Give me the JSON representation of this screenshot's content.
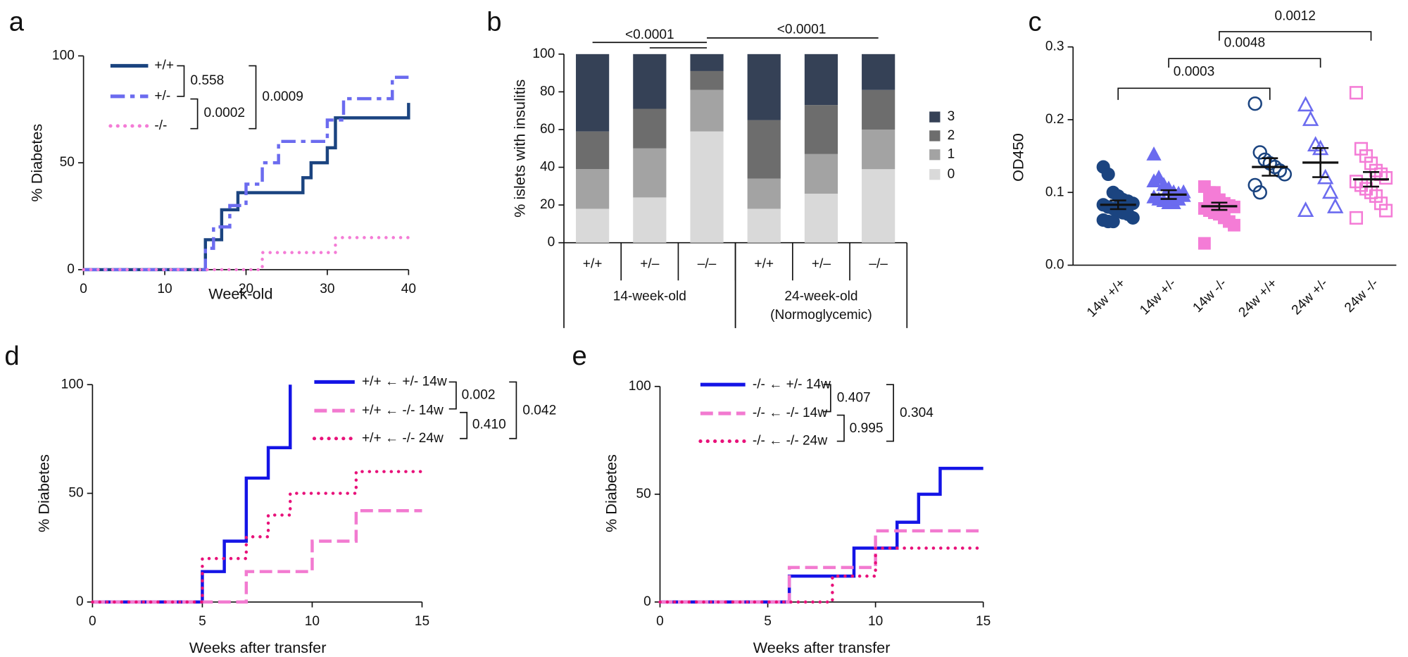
{
  "chart_data": [
    {
      "type": "step",
      "panel": "a",
      "xlabel": "Week-old",
      "ylabel": "% Diabetes",
      "xlim": [
        0,
        40
      ],
      "xticks": [
        0,
        10,
        20,
        30,
        40
      ],
      "ylim": [
        0,
        100
      ],
      "yticks": [
        0,
        50,
        100
      ],
      "series": [
        {
          "name": "+/+",
          "color": "#1b4480",
          "dash": "solid",
          "x": [
            0,
            15,
            17,
            19,
            27,
            28,
            30,
            31,
            40
          ],
          "values": [
            0,
            14,
            28,
            36,
            43,
            50,
            57,
            71,
            78
          ]
        },
        {
          "name": "+/-",
          "color": "#6b6bef",
          "dash": "dashdot",
          "x": [
            0,
            15,
            16,
            18,
            20,
            22,
            24,
            30,
            32,
            38,
            40
          ],
          "values": [
            0,
            10,
            20,
            30,
            40,
            50,
            60,
            70,
            80,
            90,
            90
          ]
        },
        {
          "name": "-/-",
          "color": "#f47cd6",
          "dash": "dotted",
          "x": [
            0,
            22,
            31,
            40
          ],
          "values": [
            0,
            8,
            15,
            15
          ]
        }
      ],
      "annotations": [
        "0.558",
        "0.0002",
        "0.0009"
      ]
    },
    {
      "type": "stacked_bar",
      "panel": "b",
      "ylabel": "% islets with insulitis",
      "ylim": [
        0,
        100
      ],
      "yticks": [
        0,
        20,
        40,
        60,
        80,
        100
      ],
      "groups": [
        {
          "label": [
            "14-week-old"
          ],
          "categories": [
            "+/+",
            "+/–",
            "–/–"
          ]
        },
        {
          "label": [
            "24-week-old",
            "(Normoglycemic)"
          ],
          "categories": [
            "+/+",
            "+/–",
            "–/–"
          ]
        }
      ],
      "series": [
        {
          "name": "0",
          "color": "#d9d9d9",
          "values": [
            18,
            24,
            59,
            18,
            26,
            39
          ]
        },
        {
          "name": "1",
          "color": "#a3a3a3",
          "values": [
            21,
            26,
            22,
            16,
            21,
            21
          ]
        },
        {
          "name": "2",
          "color": "#6d6d6d",
          "values": [
            20,
            21,
            10,
            31,
            26,
            21
          ]
        },
        {
          "name": "3",
          "color": "#354156",
          "values": [
            41,
            29,
            9,
            35,
            27,
            19
          ]
        }
      ],
      "annotations": [
        "<0.0001",
        "<0.0001"
      ]
    },
    {
      "type": "dot",
      "panel": "c",
      "ylabel": "OD450",
      "ylim": [
        0,
        0.3
      ],
      "yticks": [
        {
          "value": 0,
          "label": "0.0"
        },
        0.1,
        0.2,
        0.3
      ],
      "categories": [
        "14w +/+",
        "14w +/-",
        "14w -/-",
        "24w +/+",
        "24w +/-",
        "24w -/-"
      ],
      "colors": [
        "#1b4480",
        "#6b6bef",
        "#f47cd6",
        "#1b4480",
        "#6b6bef",
        "#f47cd6"
      ],
      "markers": [
        "circle",
        "triangle",
        "square",
        "circle",
        "triangle",
        "square"
      ],
      "filled": [
        true,
        true,
        true,
        false,
        false,
        false
      ],
      "values": [
        [
          0.135,
          0.125,
          0.1,
          0.095,
          0.09,
          0.088,
          0.085,
          0.083,
          0.08,
          0.078,
          0.075,
          0.072,
          0.07,
          0.065,
          0.062,
          0.06,
          0.06,
          0.095
        ],
        [
          0.152,
          0.12,
          0.11,
          0.105,
          0.1,
          0.098,
          0.095,
          0.093,
          0.09,
          0.088,
          0.085,
          0.085,
          0.09,
          0.1,
          0.115
        ],
        [
          0.108,
          0.1,
          0.095,
          0.09,
          0.085,
          0.082,
          0.08,
          0.078,
          0.075,
          0.072,
          0.07,
          0.065,
          0.06,
          0.055,
          0.03,
          0.09,
          0.1
        ],
        [
          0.222,
          0.155,
          0.145,
          0.14,
          0.135,
          0.13,
          0.125,
          0.11,
          0.1
        ],
        [
          0.22,
          0.2,
          0.165,
          0.16,
          0.12,
          0.1,
          0.08,
          0.075
        ],
        [
          0.237,
          0.16,
          0.15,
          0.14,
          0.13,
          0.125,
          0.12,
          0.115,
          0.11,
          0.105,
          0.1,
          0.095,
          0.085,
          0.075,
          0.065
        ]
      ],
      "means": [
        0.083,
        0.097,
        0.081,
        0.135,
        0.141,
        0.118
      ],
      "sems": [
        0.006,
        0.006,
        0.005,
        0.012,
        0.02,
        0.01
      ],
      "annotations": [
        "0.0003",
        "0.0048",
        "0.0012"
      ]
    },
    {
      "type": "step",
      "panel": "d",
      "xlabel": "Weeks after transfer",
      "ylabel": "% Diabetes",
      "xlim": [
        0,
        15
      ],
      "xticks": [
        0,
        5,
        10,
        15
      ],
      "ylim": [
        0,
        100
      ],
      "yticks": [
        0,
        50,
        100
      ],
      "series": [
        {
          "name": "+/+ ← +/- 14w",
          "color": "#1414e6",
          "dash": "solid",
          "x": [
            0,
            5,
            6,
            7,
            8,
            9
          ],
          "values": [
            0,
            14,
            28,
            57,
            71,
            100
          ]
        },
        {
          "name": "+/+ ← -/- 14w",
          "color": "#f27ad0",
          "dash": "dashed",
          "x": [
            0,
            7,
            10,
            12,
            15
          ],
          "values": [
            0,
            14,
            28,
            42,
            42
          ]
        },
        {
          "name": "+/+ ← -/- 24w",
          "color": "#e8127a",
          "dash": "dotted",
          "x": [
            0,
            5,
            7,
            8,
            9,
            12,
            15
          ],
          "values": [
            0,
            20,
            30,
            40,
            50,
            60,
            60
          ]
        }
      ],
      "annotations": [
        "0.002",
        "0.410",
        "0.042"
      ]
    },
    {
      "type": "step",
      "panel": "e",
      "xlabel": "Weeks after transfer",
      "ylabel": "% Diabetes",
      "xlim": [
        0,
        15
      ],
      "xticks": [
        0,
        5,
        10,
        15
      ],
      "ylim": [
        0,
        100
      ],
      "yticks": [
        0,
        50,
        100
      ],
      "series": [
        {
          "name": "-/- ← +/- 14w",
          "color": "#1414e6",
          "dash": "solid",
          "x": [
            0,
            6,
            9,
            11,
            12,
            13,
            15
          ],
          "values": [
            0,
            12,
            25,
            37,
            50,
            62,
            62
          ]
        },
        {
          "name": "-/- ← -/- 14w",
          "color": "#f27ad0",
          "dash": "dashed",
          "x": [
            0,
            6,
            10,
            15
          ],
          "values": [
            0,
            16,
            33,
            33
          ]
        },
        {
          "name": "-/- ← -/- 24w",
          "color": "#e8127a",
          "dash": "dotted",
          "x": [
            0,
            8,
            10,
            15
          ],
          "values": [
            0,
            12,
            25,
            25
          ]
        }
      ],
      "annotations": [
        "0.407",
        "0.995",
        "0.304"
      ]
    }
  ]
}
